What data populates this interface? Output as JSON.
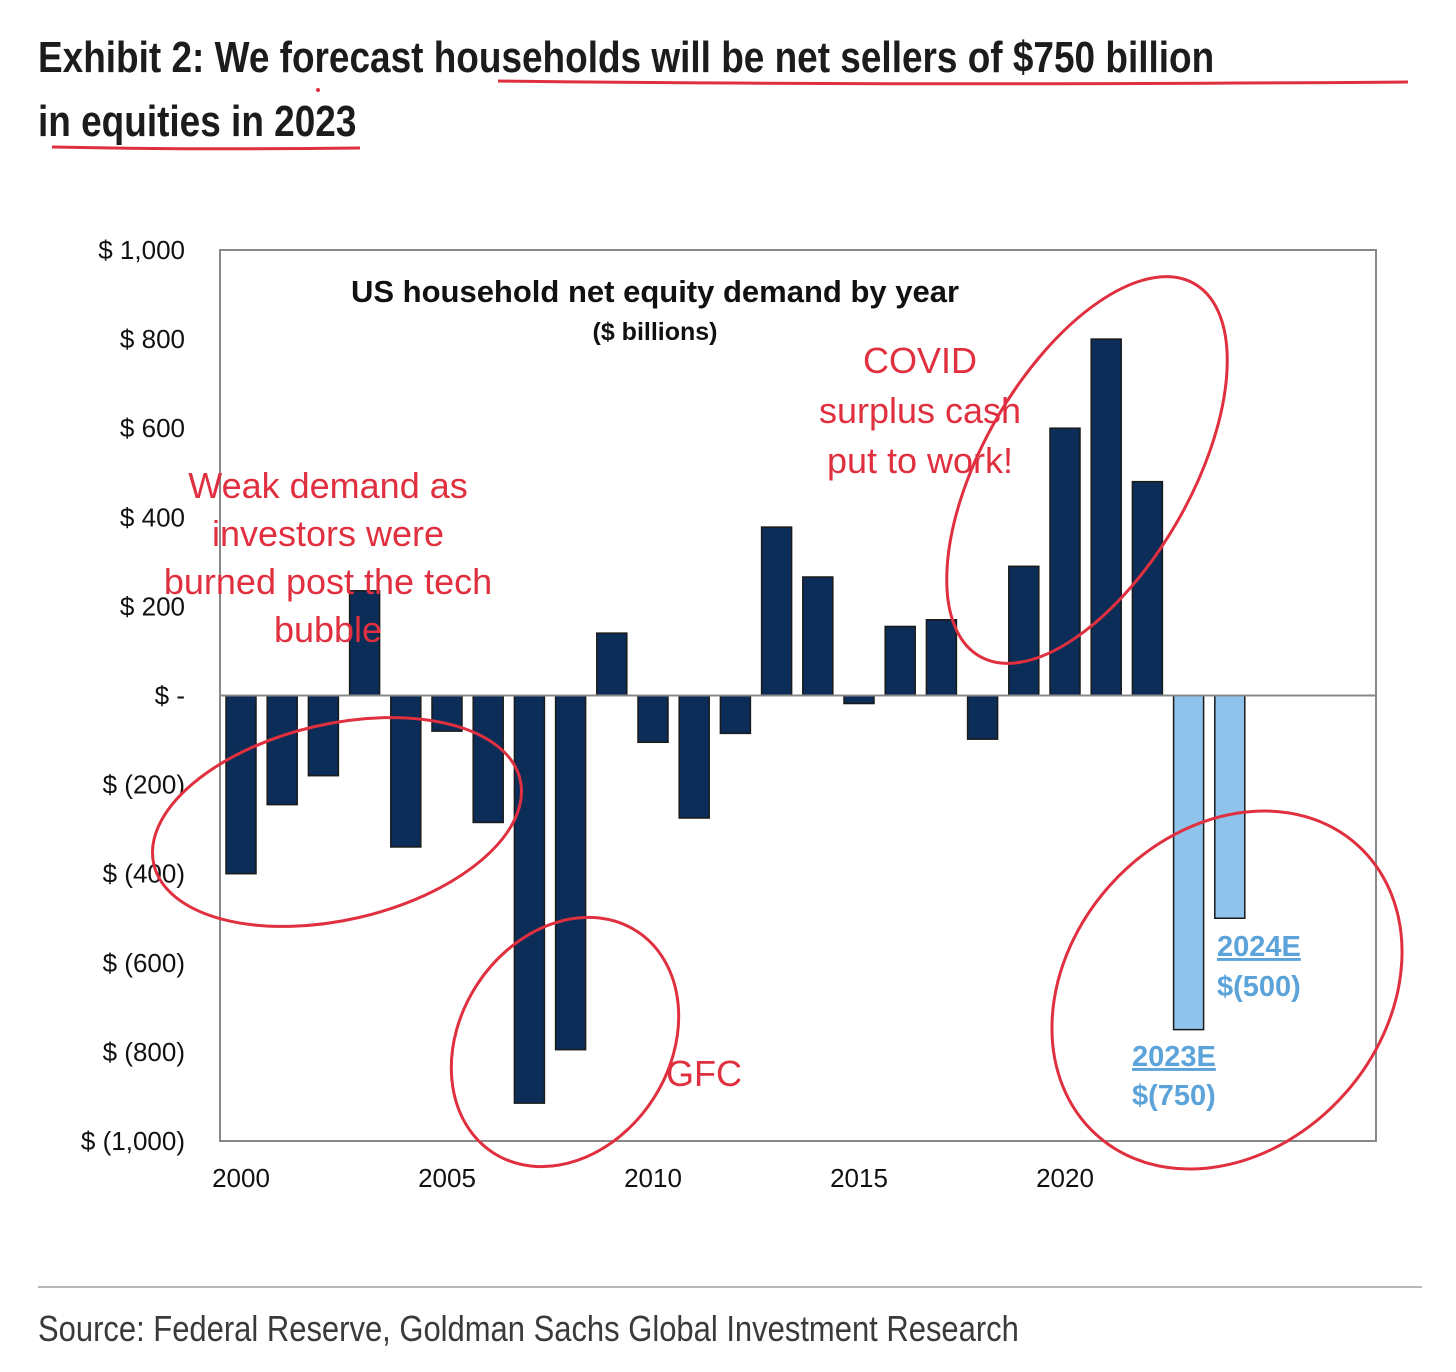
{
  "exhibit": {
    "title_line1": "Exhibit 2: We forecast households will be net sellers of $750 billion",
    "title_line2": "in equities in 2023"
  },
  "source": "Source: Federal Reserve, Goldman Sachs Global Investment Research",
  "colors": {
    "actual_bar": "#0c2d57",
    "estimate_bar": "#8fc3ec",
    "estimate_label": "#5ba3d9",
    "annotation": "#e0303f",
    "frame": "#888888",
    "text": "#111111"
  },
  "chart_data": {
    "type": "bar",
    "title": "US household net equity demand by year",
    "subtitle": "($ billions)",
    "ylim": [
      -1000,
      1000
    ],
    "y_ticks": [
      {
        "value": 1000,
        "label": "$ 1,000"
      },
      {
        "value": 800,
        "label": "$ 800"
      },
      {
        "value": 600,
        "label": "$ 600"
      },
      {
        "value": 400,
        "label": "$ 400"
      },
      {
        "value": 200,
        "label": "$ 200"
      },
      {
        "value": 0,
        "label": "$ -"
      },
      {
        "value": -200,
        "label": "$ (200)"
      },
      {
        "value": -400,
        "label": "$ (400)"
      },
      {
        "value": -600,
        "label": "$ (600)"
      },
      {
        "value": -800,
        "label": "$ (800)"
      },
      {
        "value": -1000,
        "label": "$ (1,000)"
      }
    ],
    "x_ticks": [
      2000,
      2005,
      2010,
      2015,
      2020
    ],
    "grid": false,
    "legend": "none",
    "bars": [
      {
        "year": 2000,
        "value": -400
      },
      {
        "year": 2001,
        "value": -245
      },
      {
        "year": 2002,
        "value": -180
      },
      {
        "year": 2003,
        "value": 235
      },
      {
        "year": 2004,
        "value": -340
      },
      {
        "year": 2005,
        "value": -80
      },
      {
        "year": 2006,
        "value": -285
      },
      {
        "year": 2007,
        "value": -915
      },
      {
        "year": 2008,
        "value": -795
      },
      {
        "year": 2009,
        "value": 140
      },
      {
        "year": 2010,
        "value": -105
      },
      {
        "year": 2011,
        "value": -275
      },
      {
        "year": 2012,
        "value": -85
      },
      {
        "year": 2013,
        "value": 378
      },
      {
        "year": 2014,
        "value": 266
      },
      {
        "year": 2015,
        "value": -18
      },
      {
        "year": 2016,
        "value": 155
      },
      {
        "year": 2017,
        "value": 170
      },
      {
        "year": 2018,
        "value": -98
      },
      {
        "year": 2019,
        "value": 290
      },
      {
        "year": 2020,
        "value": 600
      },
      {
        "year": 2021,
        "value": 800
      },
      {
        "year": 2022,
        "value": 480
      },
      {
        "year": 2023,
        "value": -750,
        "estimate": true
      },
      {
        "year": 2024,
        "value": -500,
        "estimate": true
      }
    ],
    "data_labels": [
      {
        "year": 2023,
        "line1": "2023E",
        "line2": "$(750)"
      },
      {
        "year": 2024,
        "line1": "2024E",
        "line2": "$(500)"
      }
    ],
    "annotations": [
      {
        "lines": [
          "Weak demand as",
          "investors were",
          "burned post the tech",
          "bubble"
        ]
      },
      {
        "lines": [
          "COVID",
          "surplus cash",
          "put to work!"
        ]
      },
      {
        "lines": [
          "GFC"
        ]
      }
    ]
  }
}
